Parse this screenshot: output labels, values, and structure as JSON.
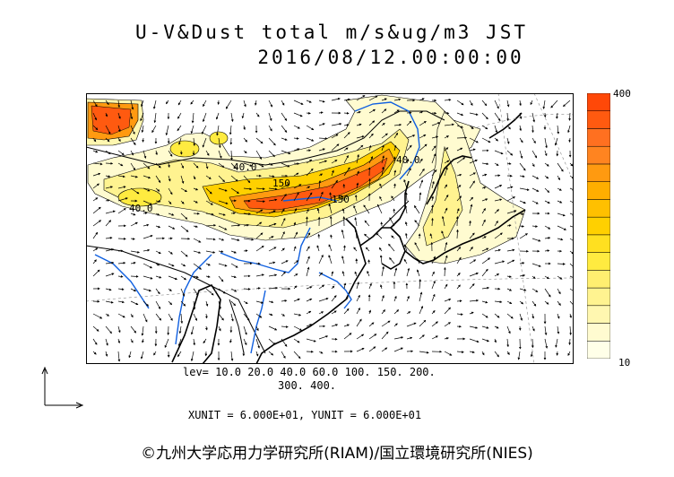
{
  "title_line1": "U-V&Dust total m/s&ug/m3 JST",
  "title_line2": "2016/08/12.00:00:00",
  "colorbar": {
    "max_label": "400",
    "min_label": "10",
    "colors": [
      "#ffffe8",
      "#fffbd0",
      "#fff7b0",
      "#fff390",
      "#ffef70",
      "#ffeb40",
      "#ffe020",
      "#ffd000",
      "#ffc000",
      "#ffae00",
      "#ff9a10",
      "#ff8420",
      "#ff7020",
      "#ff5a10",
      "#ff4808"
    ]
  },
  "levels_line1": "lev= 10.0 20.0 40.0 60.0 100. 150. 200.",
  "levels_line2": "300. 400.",
  "units": "XUNIT = 6.000E+01, YUNIT = 6.000E+01",
  "credit": "©九州大学応用力学研究所(RIAM)/国立環境研究所(NIES)",
  "contour_labels": [
    "40.0",
    "150",
    "150",
    "40.0",
    "40.0"
  ]
}
